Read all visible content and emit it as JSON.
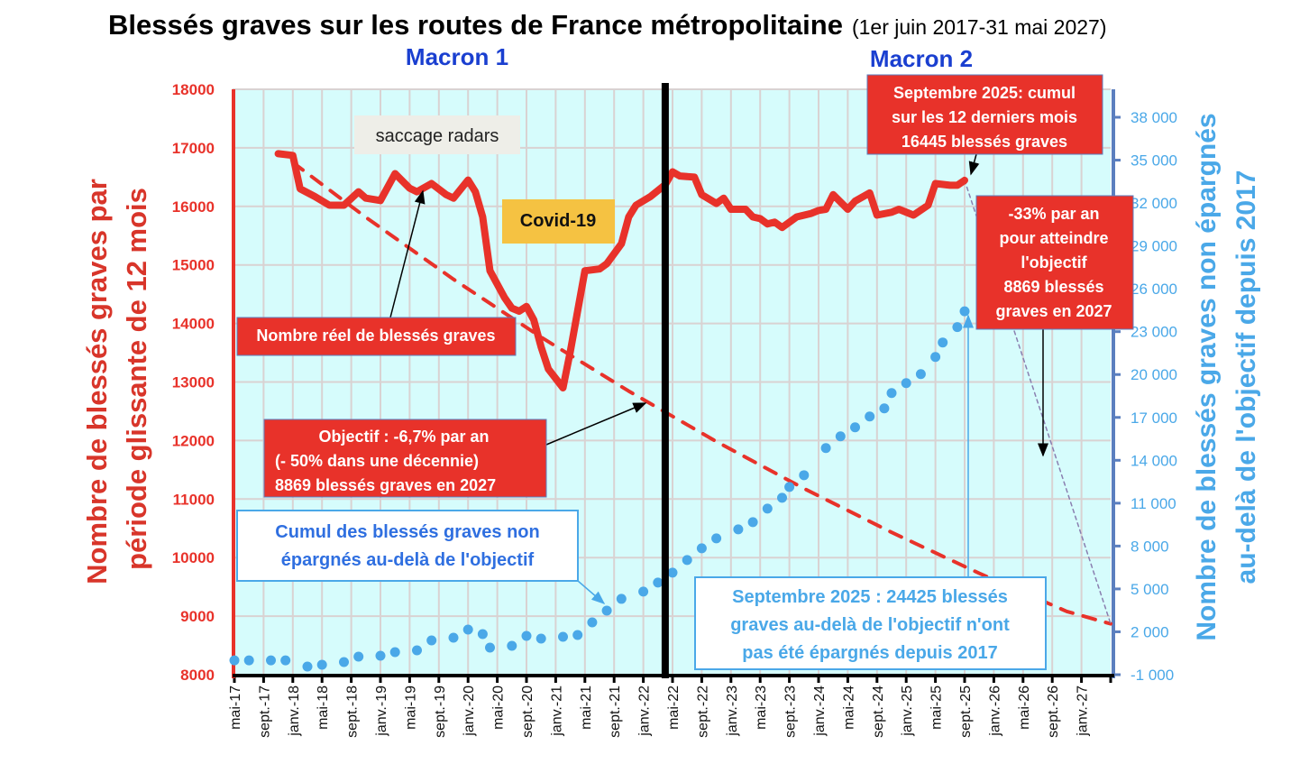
{
  "chart_data": {
    "type": "line",
    "title": "Blessés graves sur les routes de France métropolitaine",
    "subtitle": "(1er juin 2017-31 mai 2027)",
    "periods": [
      "Macron 1",
      "Macron 2"
    ],
    "x_unit": "months since mai-17",
    "x_range": [
      0,
      120
    ],
    "x_tick_labels": [
      "mai-17",
      "sept.-17",
      "janv.-18",
      "mai-18",
      "sept.-18",
      "janv.-19",
      "mai-19",
      "sept.-19",
      "janv.-20",
      "mai-20",
      "sept.-20",
      "janv.-21",
      "mai-21",
      "sept.-21",
      "janv.-22",
      "mai-22",
      "sept.-22",
      "janv.-23",
      "mai-23",
      "sept.-23",
      "janv.-24",
      "mai-24",
      "sept.-24",
      "janv.-25",
      "mai-25",
      "sept.-25",
      "janv.-26",
      "mai-26",
      "sept.-26",
      "janv.-27"
    ],
    "period_divider_month": 59,
    "y_left": {
      "label_line1": "Nombre de blessés graves par",
      "label_line2": "période glissante de 12 mois",
      "range": [
        8000,
        18000
      ],
      "ticks": [
        "8000",
        "9000",
        "10000",
        "11000",
        "12000",
        "13000",
        "14000",
        "15000",
        "16000",
        "17000",
        "18000"
      ]
    },
    "y_right": {
      "label_line1": "Nombre de blessés graves non épargnés",
      "label_line2": "au-delà de l'objectif depuis 2017",
      "range": [
        -1000,
        38000
      ],
      "ticks": [
        "-1 000",
        "2 000",
        "5 000",
        "8 000",
        "11 000",
        "14 000",
        "17 000",
        "20 000",
        "23 000",
        "26 000",
        "29 000",
        "32 000",
        "35 000",
        "38 000"
      ]
    },
    "grid": true,
    "series": [
      {
        "name": "Nombre réel de blessés graves",
        "axis": "left",
        "style": "solid",
        "color": "#e8322a",
        "points": [
          [
            6,
            16900
          ],
          [
            8,
            16870
          ],
          [
            9,
            16300
          ],
          [
            11,
            16170
          ],
          [
            13,
            16020
          ],
          [
            15,
            16020
          ],
          [
            17,
            16250
          ],
          [
            18,
            16140
          ],
          [
            20,
            16100
          ],
          [
            22,
            16560
          ],
          [
            24,
            16310
          ],
          [
            25,
            16250
          ],
          [
            27,
            16390
          ],
          [
            29,
            16200
          ],
          [
            30,
            16140
          ],
          [
            32,
            16450
          ],
          [
            33,
            16250
          ],
          [
            34,
            15820
          ],
          [
            35,
            14900
          ],
          [
            37,
            14440
          ],
          [
            38,
            14260
          ],
          [
            39,
            14210
          ],
          [
            40,
            14290
          ],
          [
            41,
            14060
          ],
          [
            42,
            13600
          ],
          [
            43,
            13220
          ],
          [
            45,
            12900
          ],
          [
            46,
            13520
          ],
          [
            47,
            14210
          ],
          [
            48,
            14900
          ],
          [
            50,
            14930
          ],
          [
            51,
            15020
          ],
          [
            53,
            15360
          ],
          [
            54,
            15820
          ],
          [
            55,
            16020
          ],
          [
            57,
            16170
          ],
          [
            59,
            16370
          ],
          [
            60,
            16590
          ],
          [
            61,
            16520
          ],
          [
            63,
            16500
          ],
          [
            64,
            16200
          ],
          [
            66,
            16050
          ],
          [
            67,
            16140
          ],
          [
            68,
            15950
          ],
          [
            70,
            15950
          ],
          [
            71,
            15820
          ],
          [
            72,
            15790
          ],
          [
            73,
            15700
          ],
          [
            74,
            15730
          ],
          [
            75,
            15640
          ],
          [
            77,
            15820
          ],
          [
            79,
            15880
          ],
          [
            80,
            15930
          ],
          [
            81,
            15950
          ],
          [
            82,
            16200
          ],
          [
            84,
            15950
          ],
          [
            85,
            16090
          ],
          [
            87,
            16230
          ],
          [
            88,
            15850
          ],
          [
            90,
            15900
          ],
          [
            91,
            15950
          ],
          [
            93,
            15850
          ],
          [
            95,
            16020
          ],
          [
            96,
            16390
          ],
          [
            98,
            16360
          ],
          [
            99,
            16360
          ],
          [
            100,
            16445
          ]
        ]
      },
      {
        "name": "Objectif : -6,7% par an",
        "axis": "left",
        "style": "dashed",
        "color": "#e8322a",
        "points": [
          [
            8,
            16750
          ],
          [
            18,
            15814
          ],
          [
            30,
            14755
          ],
          [
            42,
            13766
          ],
          [
            54,
            12844
          ],
          [
            66,
            11983
          ],
          [
            78,
            11180
          ],
          [
            90,
            10431
          ],
          [
            102,
            9732
          ],
          [
            114,
            9080
          ],
          [
            120,
            8869
          ]
        ]
      },
      {
        "name": "-33% par an",
        "axis": "left",
        "style": "thin-dashed",
        "color": "#8a7fb0",
        "points": [
          [
            100,
            16445
          ],
          [
            120,
            8869
          ]
        ]
      },
      {
        "name": "Cumul des blessés graves non épargnés au-delà de l'objectif",
        "axis": "right",
        "style": "dotted",
        "color": "#4aa8e8",
        "points": [
          [
            0,
            0
          ],
          [
            2,
            0
          ],
          [
            5,
            0
          ],
          [
            7,
            0
          ],
          [
            10,
            -430
          ],
          [
            12,
            -305
          ],
          [
            15,
            -116
          ],
          [
            17,
            263
          ],
          [
            20,
            326
          ],
          [
            22,
            579
          ],
          [
            25,
            705
          ],
          [
            27,
            1400
          ],
          [
            30,
            1590
          ],
          [
            32,
            2158
          ],
          [
            34,
            1842
          ],
          [
            35,
            895
          ],
          [
            38,
            1021
          ],
          [
            40,
            1716
          ],
          [
            42,
            1526
          ],
          [
            45,
            1653
          ],
          [
            47,
            1779
          ],
          [
            49,
            2663
          ],
          [
            51,
            3484
          ],
          [
            53,
            4305
          ],
          [
            56,
            4811
          ],
          [
            58,
            5442
          ],
          [
            60,
            6137
          ],
          [
            62,
            7021
          ],
          [
            64,
            7842
          ],
          [
            66,
            8537
          ],
          [
            69,
            9169
          ],
          [
            71,
            9674
          ],
          [
            73,
            10621
          ],
          [
            75,
            11379
          ],
          [
            76,
            12137
          ],
          [
            78,
            12958
          ],
          [
            81,
            14853
          ],
          [
            83,
            15674
          ],
          [
            85,
            16306
          ],
          [
            87,
            17064
          ],
          [
            89,
            17632
          ],
          [
            90,
            18706
          ],
          [
            92,
            19401
          ],
          [
            94,
            20032
          ],
          [
            96,
            21232
          ],
          [
            97,
            22243
          ],
          [
            99,
            23317
          ],
          [
            100,
            24425
          ]
        ]
      }
    ],
    "annotations": {
      "radars": "saccage radars",
      "covid": "Covid-19",
      "real": "Nombre réel de blessés graves",
      "objective": [
        "Objectif : -6,7% par an",
        "(- 50% dans une décennie)",
        "8869 blessés graves en 2027"
      ],
      "cumul": [
        "Cumul des blessés graves non",
        "épargnés  au-delà de l'objectif"
      ],
      "sept_cumul": [
        "Septembre 2025: cumul",
        "sur les 12 derniers mois",
        "16445 blessés graves"
      ],
      "minus33": [
        "-33% par an",
        "pour atteindre",
        "l'objectif",
        "8869 blessés",
        "graves en 2027"
      ],
      "sept_total": [
        "Septembre 2025 : 24425 blessés",
        "graves au-delà de l'objectif n'ont",
        "pas été épargnés depuis 2017"
      ]
    }
  }
}
